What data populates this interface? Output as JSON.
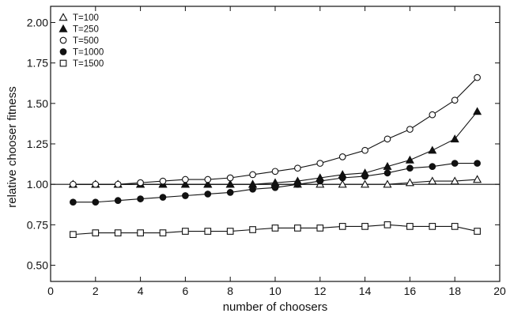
{
  "chart_data": {
    "type": "line",
    "title": "",
    "xlabel": "number of choosers",
    "ylabel": "relative chooser fitness",
    "xlim": [
      0,
      20
    ],
    "ylim": [
      0.4,
      2.1
    ],
    "xticks": [
      0,
      2,
      4,
      6,
      8,
      10,
      12,
      14,
      16,
      18,
      20
    ],
    "xtick_labels": [
      "0",
      "2",
      "4",
      "6",
      "8",
      "10",
      "12",
      "14",
      "16",
      "18",
      "20"
    ],
    "yticks": [
      0.5,
      0.75,
      1.0,
      1.25,
      1.5,
      1.75,
      2.0
    ],
    "ytick_labels": [
      "0.50",
      "0.75",
      "1.00",
      "1.25",
      "1.50",
      "1.75",
      "2.00"
    ],
    "reference_line": 1.0,
    "grid": false,
    "legend_position": "top-left",
    "x": [
      1,
      2,
      3,
      4,
      5,
      6,
      7,
      8,
      9,
      10,
      11,
      12,
      13,
      14,
      15,
      16,
      17,
      18,
      19
    ],
    "series": [
      {
        "name": "T=100",
        "marker": "triangle-open",
        "values": [
          1.0,
          1.0,
          1.0,
          1.0,
          1.0,
          1.0,
          1.0,
          1.0,
          1.0,
          1.0,
          1.0,
          1.0,
          1.0,
          1.0,
          1.0,
          1.01,
          1.02,
          1.02,
          1.03
        ]
      },
      {
        "name": "T=250",
        "marker": "triangle-filled",
        "values": [
          1.0,
          1.0,
          1.0,
          1.0,
          1.0,
          1.0,
          1.0,
          1.0,
          1.0,
          1.01,
          1.02,
          1.04,
          1.06,
          1.07,
          1.11,
          1.15,
          1.21,
          1.28,
          1.45
        ]
      },
      {
        "name": "T=500",
        "marker": "circle-open",
        "values": [
          1.0,
          1.0,
          1.0,
          1.01,
          1.02,
          1.03,
          1.03,
          1.04,
          1.06,
          1.08,
          1.1,
          1.13,
          1.17,
          1.21,
          1.28,
          1.34,
          1.43,
          1.52,
          1.66
        ]
      },
      {
        "name": "T=1000",
        "marker": "circle-filled",
        "values": [
          0.89,
          0.89,
          0.9,
          0.91,
          0.92,
          0.93,
          0.94,
          0.95,
          0.97,
          0.98,
          1.0,
          1.02,
          1.04,
          1.05,
          1.07,
          1.1,
          1.11,
          1.13,
          1.13
        ]
      },
      {
        "name": "T=1500",
        "marker": "square-open",
        "values": [
          0.69,
          0.7,
          0.7,
          0.7,
          0.7,
          0.71,
          0.71,
          0.71,
          0.72,
          0.73,
          0.73,
          0.73,
          0.74,
          0.74,
          0.75,
          0.74,
          0.74,
          0.74,
          0.71
        ]
      }
    ]
  }
}
